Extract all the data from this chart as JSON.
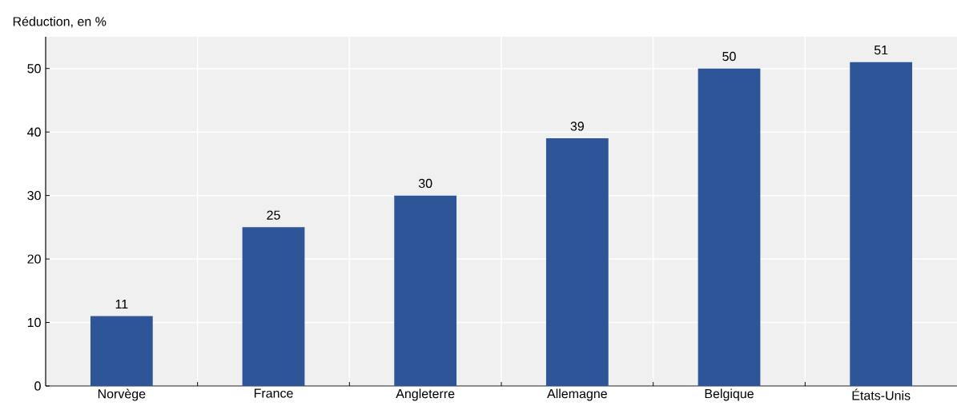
{
  "chart_data": {
    "type": "bar",
    "ylabel": "Réduction, en %",
    "categories": [
      "Norvège",
      "France",
      "Angleterre",
      "Allemagne",
      "Belgique",
      "États-Unis"
    ],
    "values": [
      11,
      25,
      30,
      39,
      50,
      51
    ],
    "color": "#2e5597",
    "ylim": [
      0,
      55
    ],
    "yticks": [
      0,
      10,
      20,
      30,
      40,
      50
    ],
    "grid": true,
    "data_labels": true
  }
}
